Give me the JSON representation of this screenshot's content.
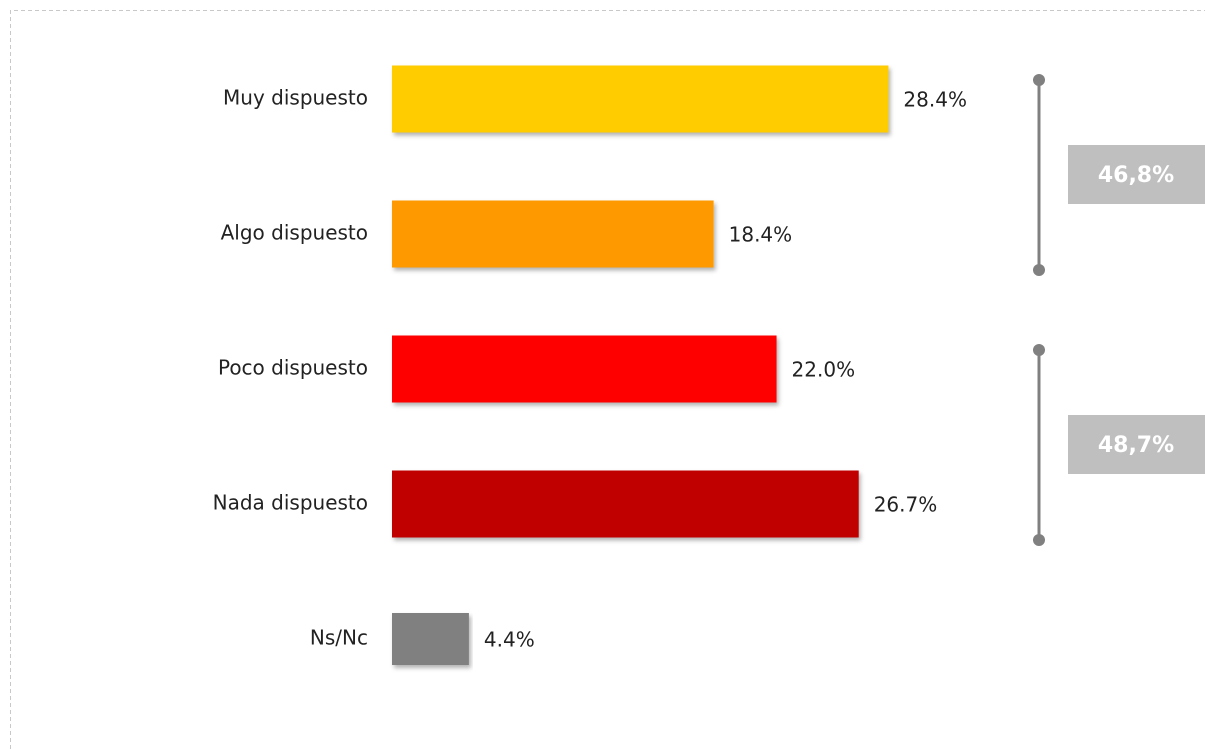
{
  "chart_data": {
    "type": "hbar",
    "categories": [
      "Muy dispuesto",
      "Algo dispuesto",
      "Poco dispuesto",
      "Nada dispuesto",
      "Ns/Nc"
    ],
    "values": [
      28.4,
      18.4,
      22.0,
      26.7,
      4.4
    ],
    "value_labels": [
      "28.4%",
      "18.4%",
      "22.0%",
      "26.7%",
      "4.4%"
    ],
    "colors": [
      "#ffcc00",
      "#ff9900",
      "#ff0000",
      "#c00000",
      "#808080"
    ],
    "annotations": [
      "46,8%",
      "48,7%"
    ]
  }
}
